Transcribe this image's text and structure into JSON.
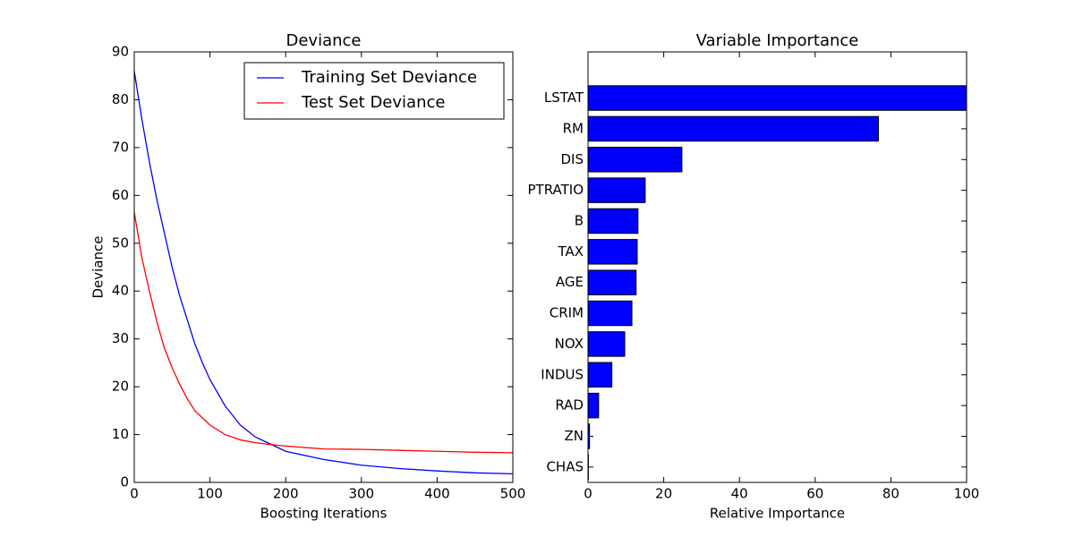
{
  "chart_data": [
    {
      "type": "line",
      "title": "Deviance",
      "x_label": "Boosting Iterations",
      "y_label": "Deviance",
      "x": [
        0,
        10,
        20,
        30,
        40,
        50,
        60,
        70,
        80,
        90,
        100,
        120,
        140,
        160,
        180,
        200,
        250,
        300,
        350,
        400,
        450,
        500
      ],
      "series": [
        {
          "name": "Training Set Deviance",
          "color": "#0000ff",
          "values": [
            86,
            76,
            67,
            59,
            52,
            45,
            39,
            34,
            29,
            25,
            21.5,
            16,
            12,
            9.5,
            8,
            6.5,
            4.8,
            3.6,
            2.9,
            2.4,
            2.0,
            1.8
          ]
        },
        {
          "name": "Test Set Deviance",
          "color": "#ff0000",
          "values": [
            56.5,
            47,
            40,
            33.5,
            28,
            24,
            20.5,
            17.5,
            15,
            13.5,
            12,
            10,
            8.9,
            8.3,
            7.9,
            7.6,
            7.0,
            6.9,
            6.7,
            6.5,
            6.3,
            6.2
          ]
        }
      ],
      "xlim": [
        0,
        500
      ],
      "xticks": [
        0,
        100,
        200,
        300,
        400,
        500
      ],
      "ylim": [
        0,
        90
      ],
      "yticks": [
        0,
        10,
        20,
        30,
        40,
        50,
        60,
        70,
        80,
        90
      ],
      "legend": "upper right"
    },
    {
      "type": "bar",
      "orientation": "horizontal",
      "title": "Variable Importance",
      "x_label": "Relative Importance",
      "categories": [
        "LSTAT",
        "RM",
        "DIS",
        "PTRATIO",
        "B",
        "TAX",
        "AGE",
        "CRIM",
        "NOX",
        "INDUS",
        "RAD",
        "ZN",
        "CHAS"
      ],
      "values": [
        100,
        76.7,
        24.8,
        15.1,
        13.2,
        13.0,
        12.7,
        11.6,
        9.7,
        6.3,
        2.8,
        0.4,
        0.1
      ],
      "color": "#0000ff",
      "xlim": [
        0,
        100
      ],
      "xticks": [
        0,
        20,
        40,
        60,
        80,
        100
      ]
    }
  ]
}
